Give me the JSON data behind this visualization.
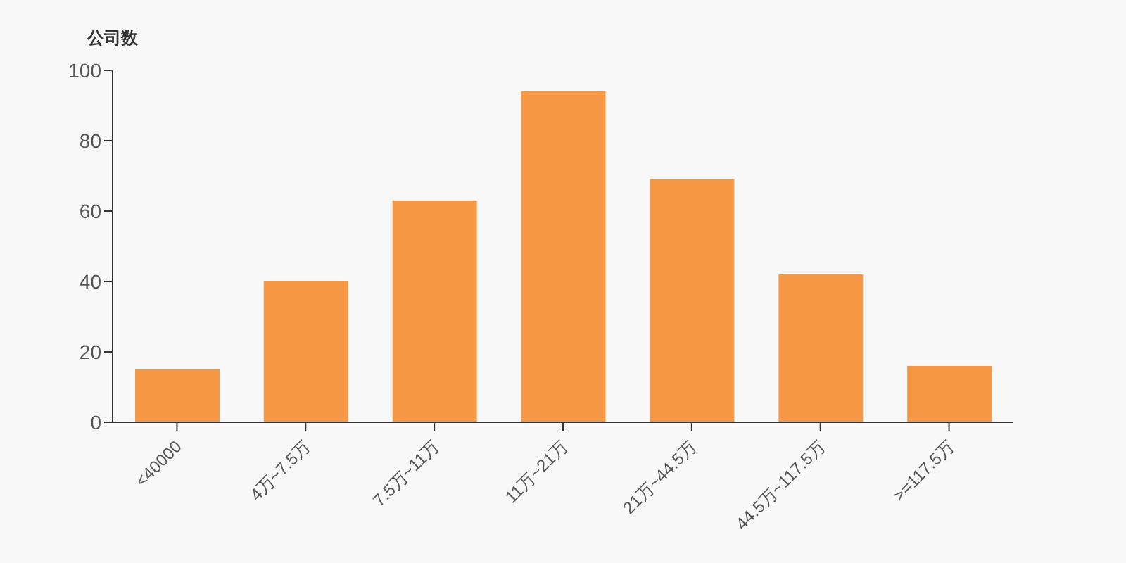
{
  "chart_data": {
    "type": "bar",
    "ylabel": "公司数",
    "categories": [
      "<40000",
      "4万~7.5万",
      "7.5万~11万",
      "11万~21万",
      "21万~44.5万",
      "44.5万~117.5万",
      ">=117.5万"
    ],
    "values": [
      15,
      40,
      63,
      94,
      69,
      42,
      16
    ],
    "color": "#f79846",
    "ylim": [
      0,
      100
    ],
    "yticks": [
      0,
      20,
      40,
      60,
      80,
      100
    ],
    "grid": false,
    "legend": false
  }
}
